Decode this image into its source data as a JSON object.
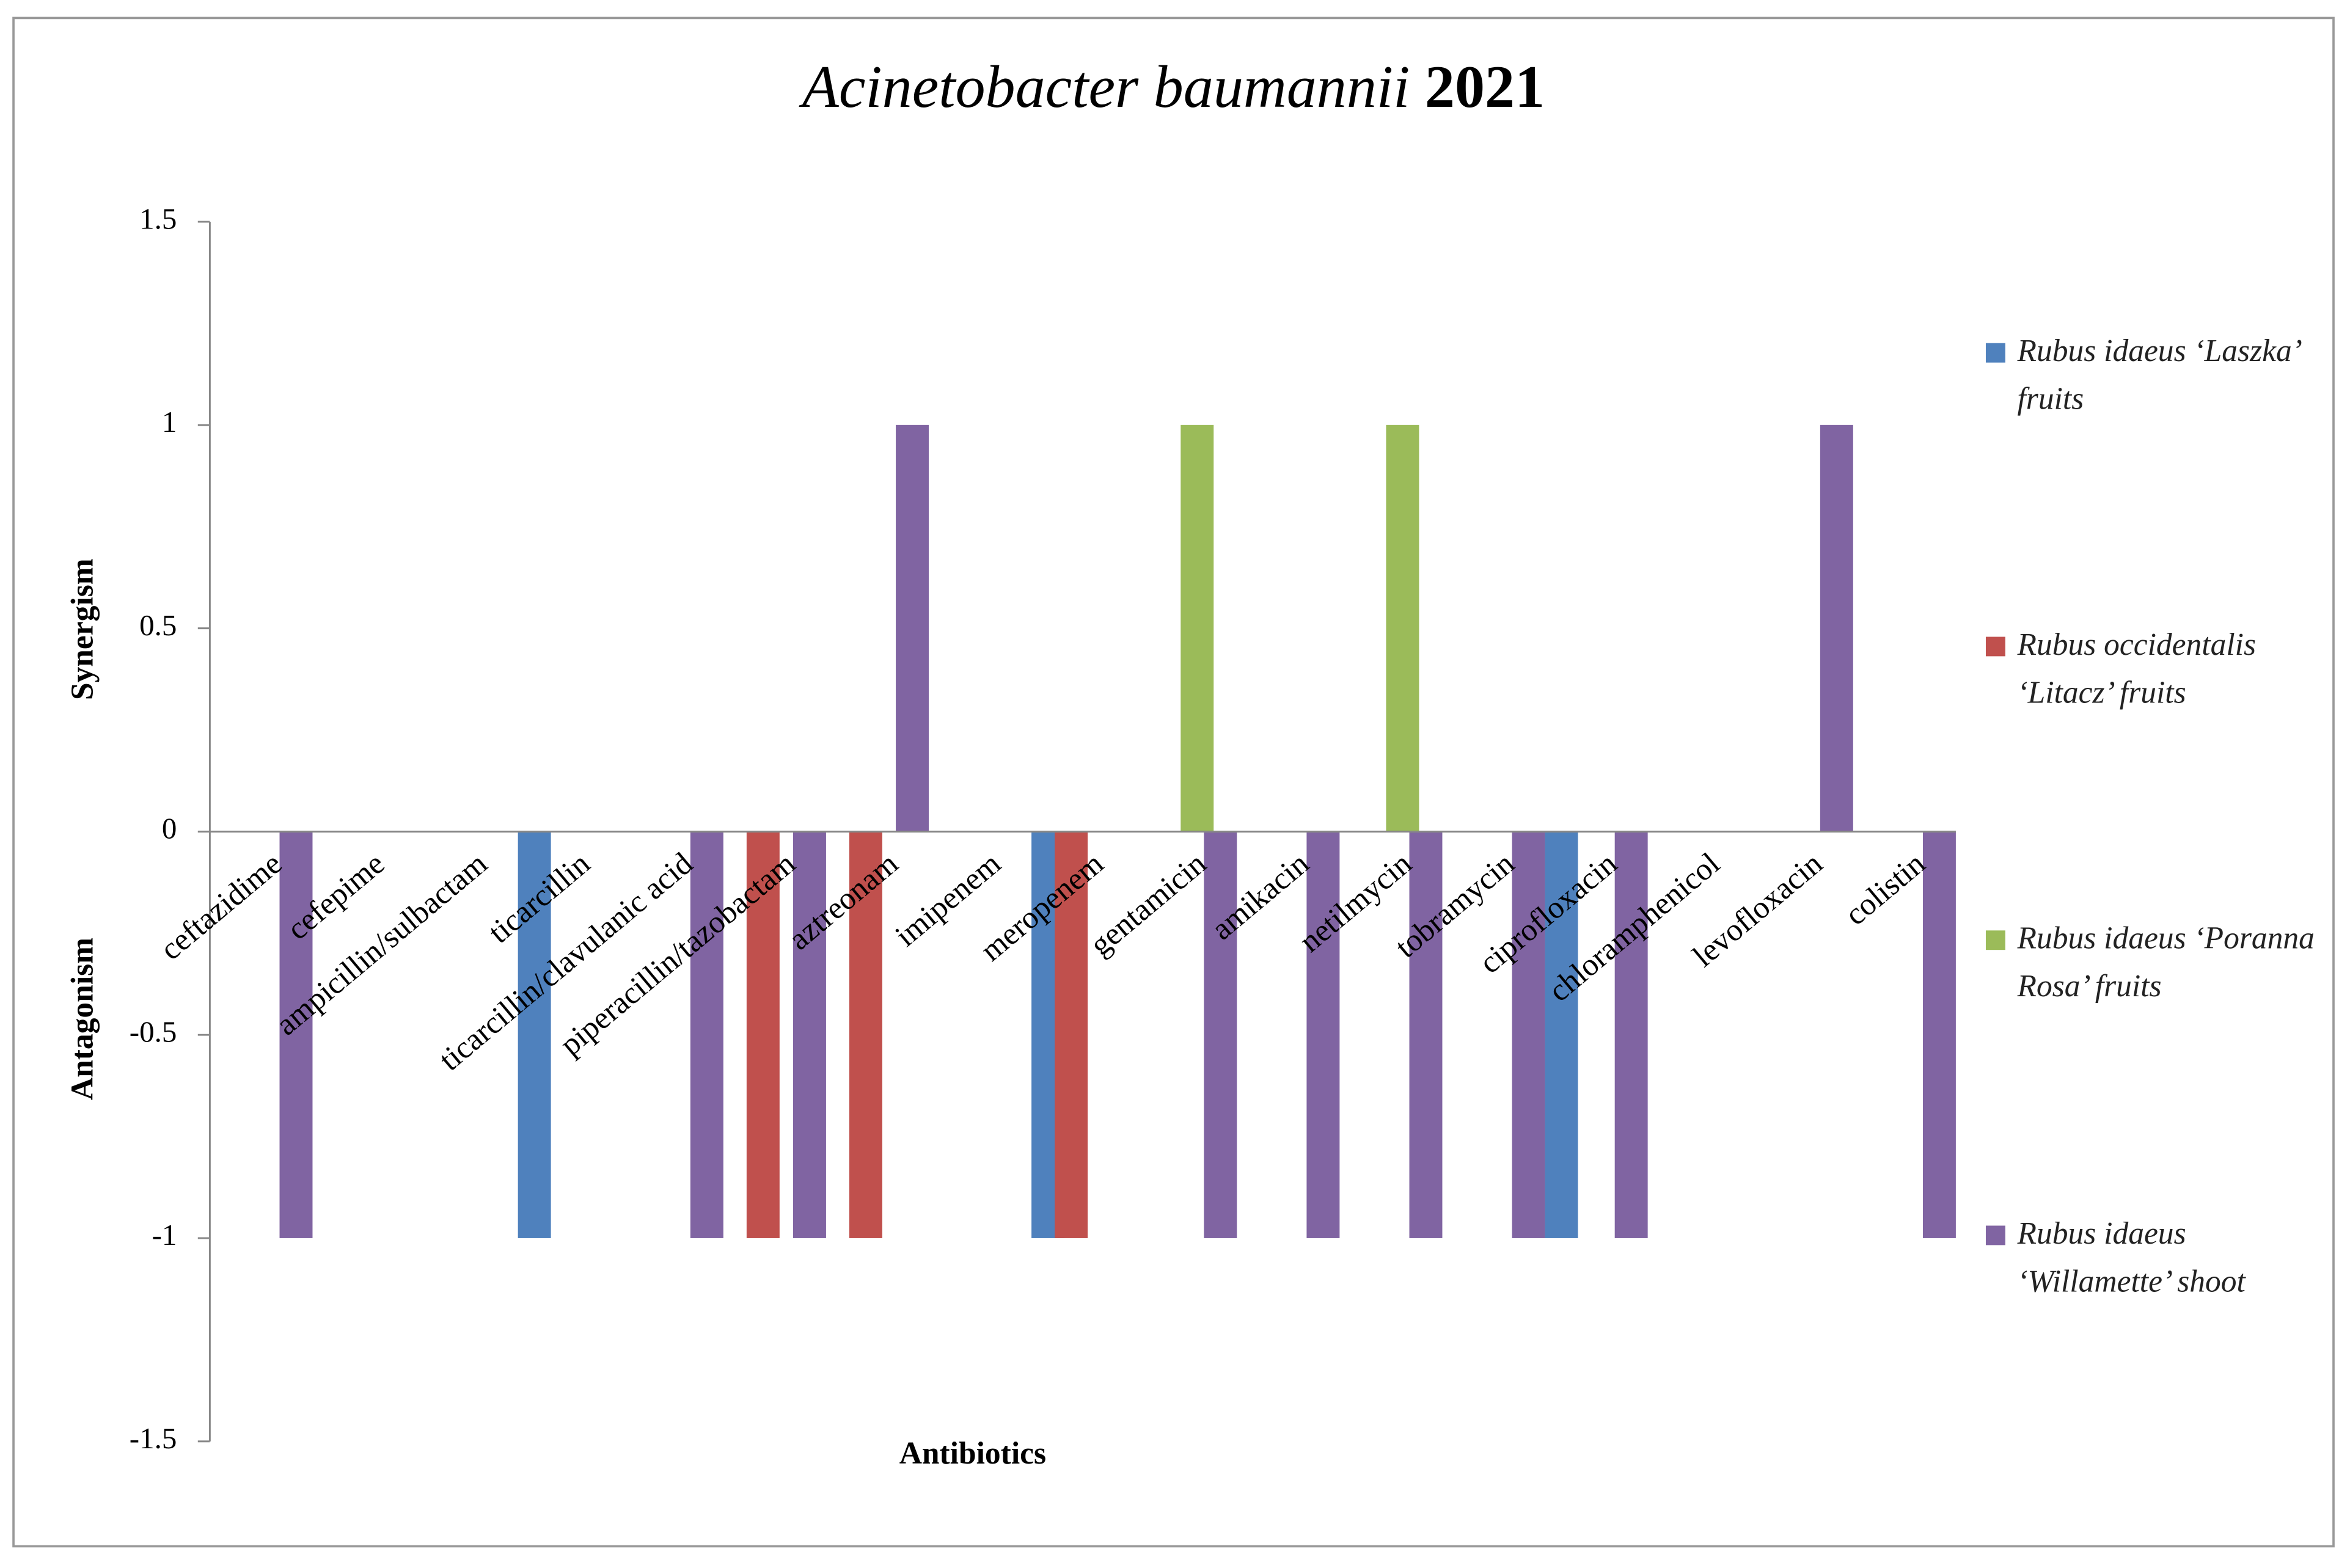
{
  "chart_data": {
    "type": "bar",
    "title": [
      "Acinetobacter baumannii",
      "2021"
    ],
    "y_axis_labels": [
      "Synergism",
      "Antagonism"
    ],
    "x_axis_label": "Antibiotics",
    "categories": [
      "ceftazidime",
      "cefepime",
      "ampicillin/sulbactam",
      "ticarcillin",
      "ticarcillin/clavulanic acid",
      "piperacillin/tazobactam",
      "aztreonam",
      "imipenem",
      "meropenem",
      "gentamicin",
      "amikacin",
      "netilmycin",
      "tobramycin",
      "ciprofloxacin",
      "chloramphenicol",
      "levofloxacin",
      "colistin"
    ],
    "series": [
      {
        "name": "Rubus idaeus ‘Laszka’ fruits",
        "color": "#4f81bd",
        "values": [
          0,
          0,
          0,
          -1,
          0,
          0,
          0,
          0,
          -1,
          0,
          0,
          0,
          0,
          -1,
          0,
          0,
          0
        ]
      },
      {
        "name": "Rubus occidentalis ‘Litacz’ fruits",
        "color": "#c0504d",
        "values": [
          0,
          0,
          0,
          0,
          0,
          -1,
          -1,
          0,
          -1,
          0,
          0,
          0,
          0,
          0,
          0,
          0,
          0
        ]
      },
      {
        "name": "Rubus idaeus ‘Poranna Rosa’ fruits",
        "color": "#9bbb59",
        "values": [
          0,
          0,
          0,
          0,
          0,
          0,
          0,
          0,
          0,
          1,
          0,
          1,
          0,
          0,
          0,
          0,
          0
        ]
      },
      {
        "name": "Rubus idaeus ‘Willamette’ shoot",
        "color": "#8064a2",
        "values": [
          -1,
          0,
          0,
          0,
          -1,
          -1,
          1,
          0,
          0,
          -1,
          -1,
          -1,
          -1,
          -1,
          0,
          1,
          -1
        ]
      }
    ],
    "ylim": [
      -1.5,
      1.5
    ],
    "yticks": [
      -1.5,
      -1,
      -0.5,
      0,
      0.5,
      1,
      1.5
    ],
    "legend": "right"
  }
}
